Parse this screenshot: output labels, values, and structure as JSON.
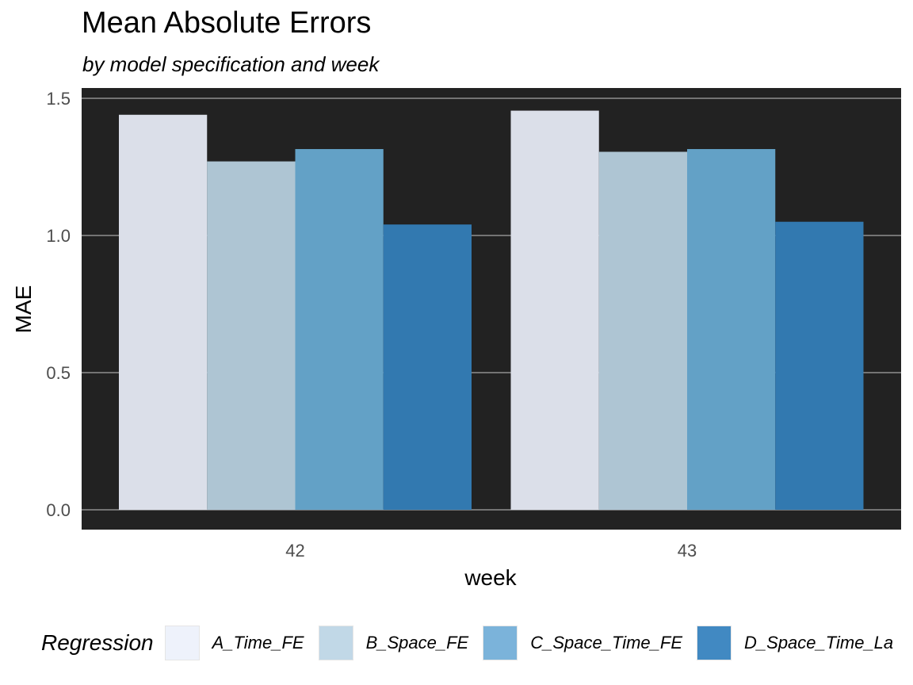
{
  "chart_data": {
    "type": "bar",
    "title": "Mean Absolute Errors",
    "subtitle": "by model specification and week",
    "xlabel": "week",
    "ylabel": "MAE",
    "categories": [
      "42",
      "43"
    ],
    "series": [
      {
        "name": "A_Time_FE",
        "values": [
          1.44,
          1.455
        ],
        "color": "#dbdfe9"
      },
      {
        "name": "B_Space_FE",
        "values": [
          1.27,
          1.305
        ],
        "color": "#aec5d3"
      },
      {
        "name": "C_Space_Time_FE",
        "values": [
          1.315,
          1.315
        ],
        "color": "#63a1c6"
      },
      {
        "name": "D_Space_Time_La",
        "values": [
          1.04,
          1.05
        ],
        "color": "#3279b0"
      }
    ],
    "yticks": [
      "0.0",
      "0.5",
      "1.0",
      "1.5"
    ],
    "ylim": [
      -0.07,
      1.535
    ],
    "grid": true,
    "panel_background": "#222222",
    "legend": {
      "title": "Regression",
      "position": "bottom"
    },
    "legend_colors": [
      "#eef2fb",
      "#c1d8e7",
      "#7bb3da",
      "#4189c2"
    ]
  }
}
